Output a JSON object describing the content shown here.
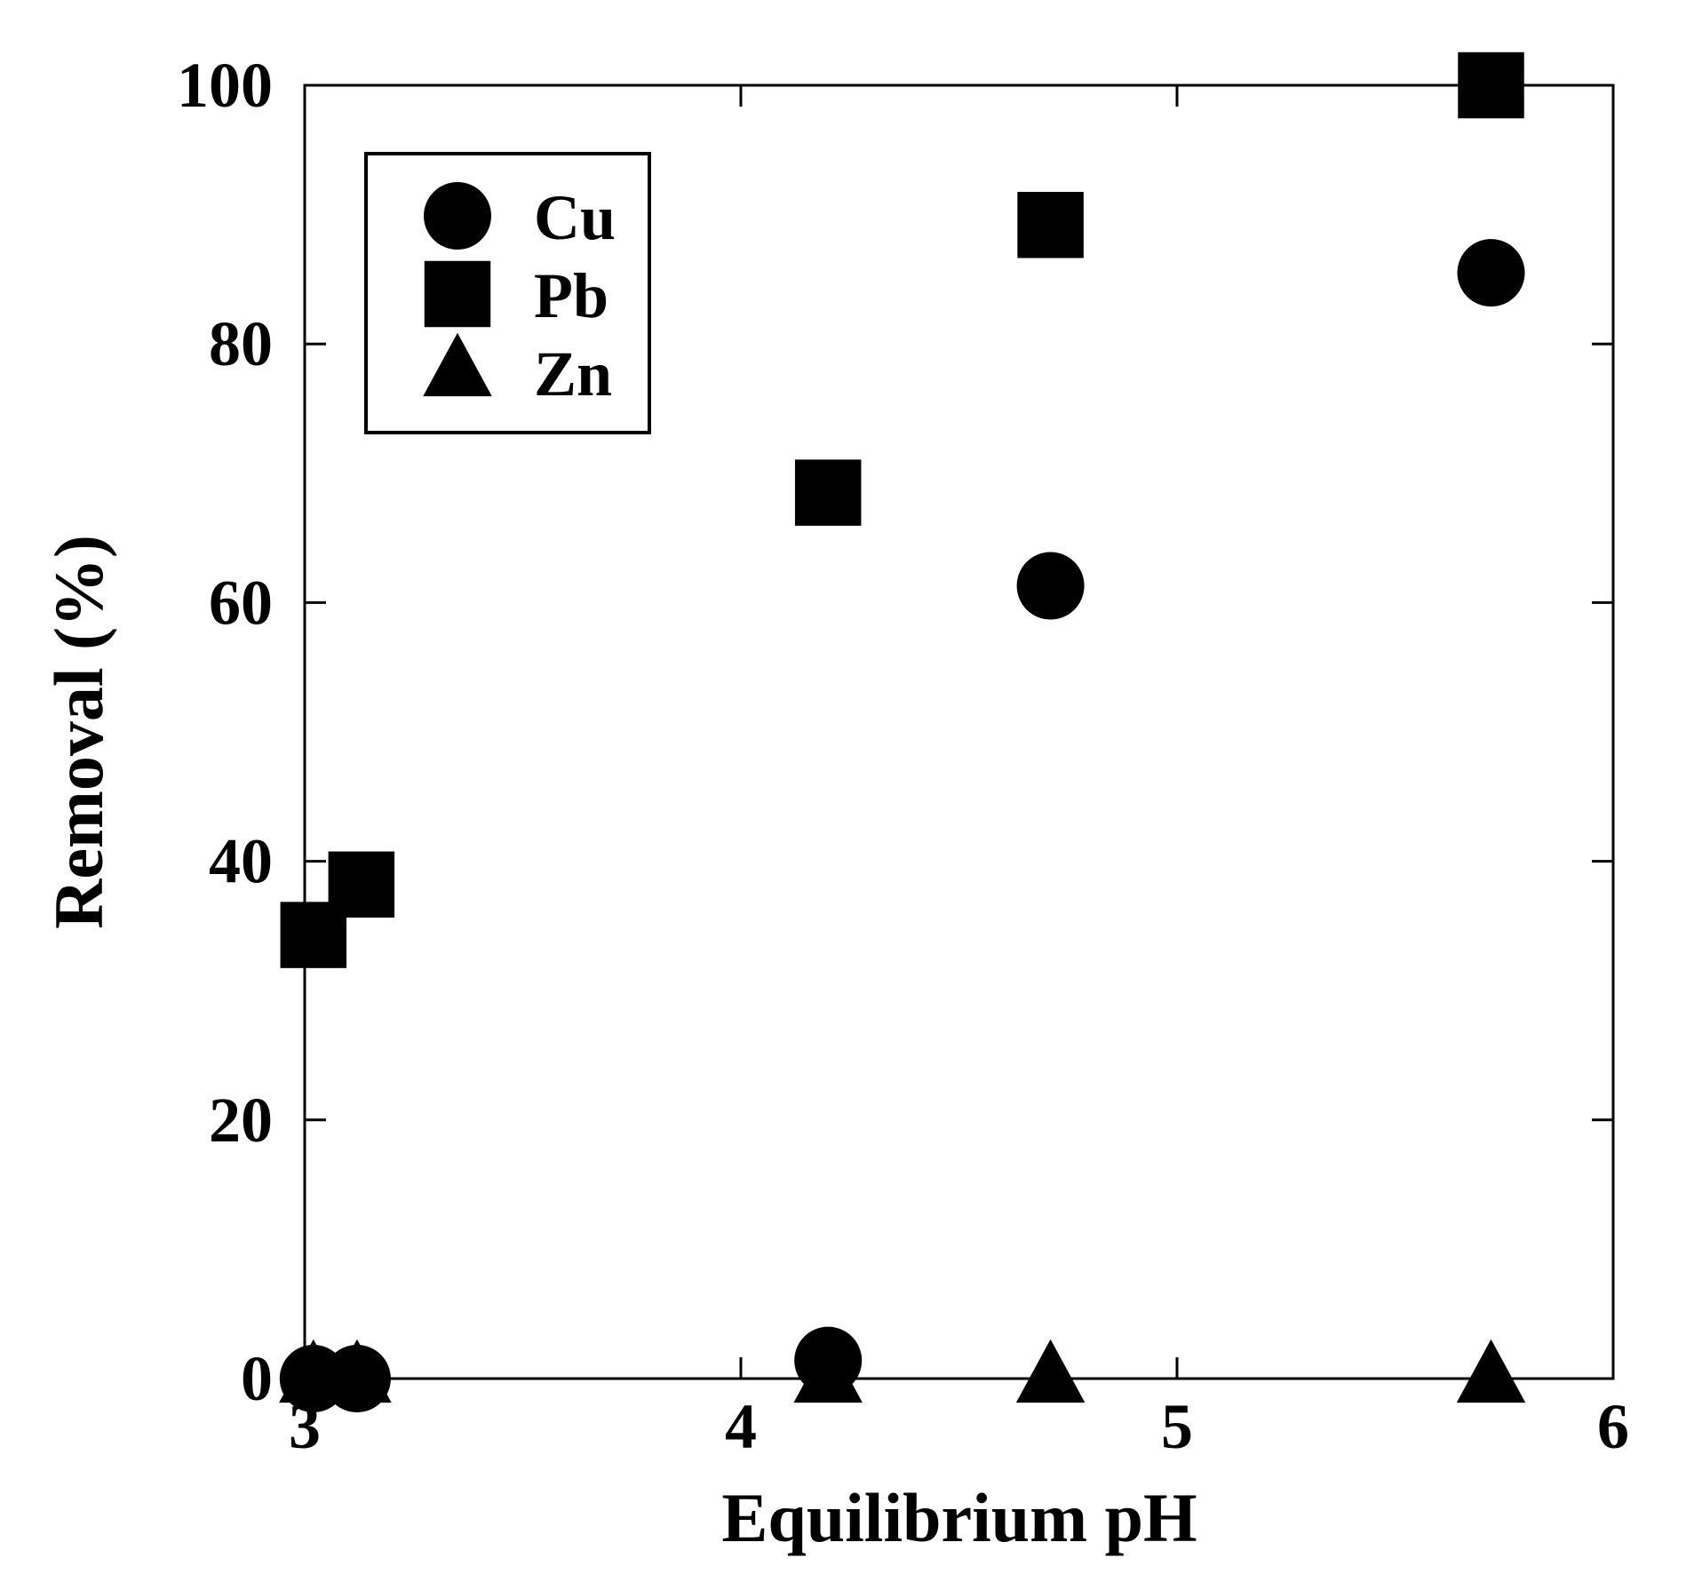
{
  "chart_data": {
    "type": "scatter",
    "title": "",
    "xlabel": "Equilibrium pH",
    "ylabel": "Removal (%)",
    "xlim": [
      3,
      6
    ],
    "ylim": [
      0,
      100
    ],
    "xticks": [
      "3",
      "4",
      "5",
      "6"
    ],
    "yticks": [
      "0",
      "20",
      "40",
      "60",
      "80",
      "100"
    ],
    "grid": false,
    "legend_position": "top-left",
    "series": [
      {
        "name": "Cu",
        "marker": "circle",
        "color": "#000000",
        "points": [
          {
            "x": 3.02,
            "y": 0
          },
          {
            "x": 3.12,
            "y": 0
          },
          {
            "x": 4.2,
            "y": 1.4
          },
          {
            "x": 4.71,
            "y": 61.3
          },
          {
            "x": 5.72,
            "y": 85.5
          }
        ]
      },
      {
        "name": "Pb",
        "marker": "square",
        "color": "#000000",
        "points": [
          {
            "x": 3.02,
            "y": 34.3
          },
          {
            "x": 3.13,
            "y": 38.2
          },
          {
            "x": 4.2,
            "y": 68.5
          },
          {
            "x": 4.71,
            "y": 89.2
          },
          {
            "x": 5.72,
            "y": 100
          }
        ]
      },
      {
        "name": "Zn",
        "marker": "triangle",
        "color": "#000000",
        "points": [
          {
            "x": 3.02,
            "y": 0
          },
          {
            "x": 3.12,
            "y": 0
          },
          {
            "x": 4.2,
            "y": 0
          },
          {
            "x": 4.71,
            "y": 0
          },
          {
            "x": 5.72,
            "y": 0
          }
        ]
      }
    ]
  }
}
